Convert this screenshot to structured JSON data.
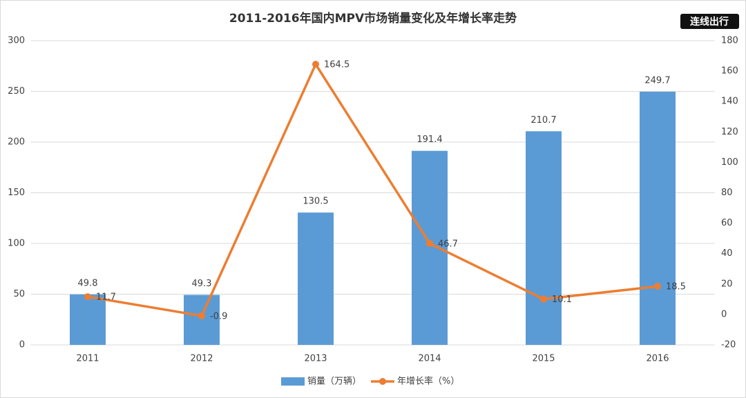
{
  "chart_data": {
    "type": "bar",
    "title": "2011-2016年国内MPV市场销量变化及年增长率走势",
    "watermark": "连线出行",
    "categories": [
      "2011",
      "2012",
      "2013",
      "2014",
      "2015",
      "2016"
    ],
    "series": [
      {
        "name": "销量（万辆）",
        "type": "bar",
        "color": "#5b9bd5",
        "values": [
          49.8,
          49.3,
          130.5,
          191.4,
          210.7,
          249.7
        ]
      },
      {
        "name": "年增长率（%）",
        "type": "line",
        "axis": "y2",
        "color": "#ed7d31",
        "values": [
          11.7,
          -0.9,
          164.5,
          46.7,
          10.1,
          18.5
        ]
      }
    ],
    "ylim": [
      0,
      300
    ],
    "yticks": [
      0,
      50,
      100,
      150,
      200,
      250,
      300
    ],
    "y2lim": [
      -20,
      180
    ],
    "y2ticks": [
      -20,
      0,
      20,
      40,
      60,
      80,
      100,
      120,
      140,
      160,
      180
    ],
    "grid": true,
    "legend": "bottom"
  }
}
